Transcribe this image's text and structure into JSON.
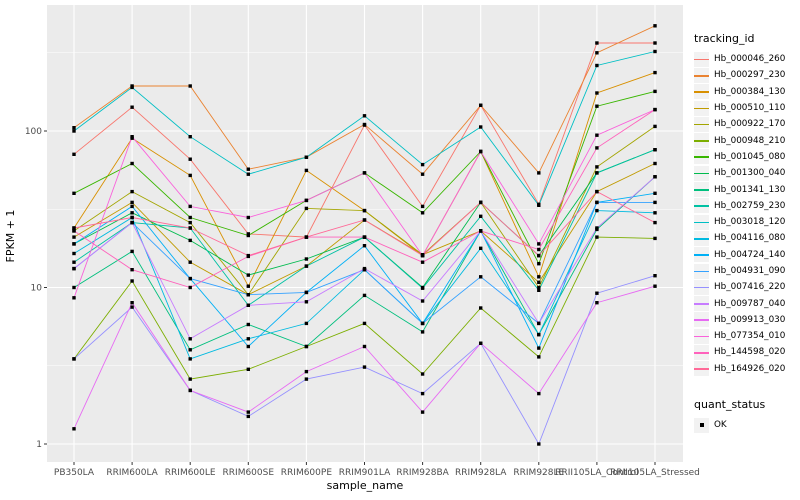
{
  "chart_data": {
    "type": "line",
    "title": "",
    "xlabel": "sample_name",
    "ylabel": "FPKM + 1",
    "y_scale": "log10",
    "ylim": [
      1,
      500
    ],
    "y_ticks": [
      "1",
      "10",
      "100"
    ],
    "grid": "on",
    "panel_bg": "#EBEBEB",
    "grid_color": "#FFFFFF",
    "marker": "black-square",
    "legend_title": "tracking_id",
    "legend_position": "right",
    "categories": [
      "PB350LA",
      "RRIM600LA",
      "RRIM600LE",
      "RRIM600SE",
      "RRIM600PE",
      "RRIM901LA",
      "RRIM928BA",
      "RRIM928LA",
      "RRIM928LE",
      "RRII105LA_Control",
      "RRII105LA_Stressed"
    ],
    "series": [
      {
        "name": "Hb_000046_260",
        "color": "#F8766D",
        "values": [
          71,
          142,
          66,
          22,
          21,
          109,
          33,
          146,
          34,
          365,
          365
        ]
      },
      {
        "name": "Hb_000297_230",
        "color": "#EA8331",
        "values": [
          105,
          194,
          194,
          57,
          68,
          110,
          53,
          146,
          54,
          316,
          470
        ]
      },
      {
        "name": "Hb_000384_130",
        "color": "#D89000",
        "values": [
          24,
          90,
          52,
          10.2,
          56,
          31,
          16,
          74,
          11.7,
          175,
          236
        ]
      },
      {
        "name": "Hb_000510_110",
        "color": "#C09B00",
        "values": [
          21,
          35,
          14.5,
          9,
          13.7,
          27,
          16.2,
          23,
          10.8,
          41,
          62
        ]
      },
      {
        "name": "Hb_000922_170",
        "color": "#A3A500",
        "values": [
          23,
          41,
          26,
          9,
          32,
          31,
          16.2,
          35,
          10,
          59,
          107
        ]
      },
      {
        "name": "Hb_000948_210",
        "color": "#7CAE00",
        "values": [
          3.5,
          11,
          2.6,
          3,
          4.2,
          5.9,
          2.8,
          7.4,
          3.6,
          21,
          20.6
        ]
      },
      {
        "name": "Hb_001045_080",
        "color": "#39B600",
        "values": [
          40,
          62,
          28,
          21.5,
          36,
          54,
          30,
          74,
          14.2,
          144,
          179
        ]
      },
      {
        "name": "Hb_001300_040",
        "color": "#00BB4E",
        "values": [
          19,
          30,
          20,
          12,
          15.2,
          21,
          10,
          35,
          16,
          54,
          76
        ]
      },
      {
        "name": "Hb_001341_130",
        "color": "#00BF7D",
        "values": [
          10,
          17,
          4,
          5.8,
          4.2,
          8.9,
          5.2,
          23,
          5,
          23.5,
          51
        ]
      },
      {
        "name": "Hb_002759_230",
        "color": "#00C1A3",
        "values": [
          14.5,
          26,
          24,
          7.7,
          13.7,
          21,
          9.9,
          28.5,
          9.6,
          54,
          76
        ]
      },
      {
        "name": "Hb_003018_120",
        "color": "#00BFC4",
        "values": [
          100,
          190,
          92,
          53,
          68,
          125,
          61,
          106,
          33.5,
          262,
          322
        ]
      },
      {
        "name": "Hb_004116_080",
        "color": "#00BAE0",
        "values": [
          16.5,
          28,
          3.5,
          4.7,
          5.9,
          13,
          5.9,
          17.8,
          5,
          31,
          30
        ]
      },
      {
        "name": "Hb_004724_140",
        "color": "#00B0F6",
        "values": [
          19,
          33,
          11.4,
          4.2,
          9.3,
          18.5,
          5.9,
          23,
          4.1,
          35,
          40
        ]
      },
      {
        "name": "Hb_004931_090",
        "color": "#35A2FF",
        "values": [
          13.2,
          26,
          11.4,
          9,
          9.3,
          13,
          5.9,
          11.7,
          5.9,
          35,
          35
        ]
      },
      {
        "name": "Hb_007416_220",
        "color": "#9590FF",
        "values": [
          3.5,
          7.5,
          2.2,
          1.5,
          2.6,
          3.1,
          2.1,
          4.4,
          1,
          9.2,
          11.9
        ]
      },
      {
        "name": "Hb_009787_040",
        "color": "#C77CFF",
        "values": [
          13.2,
          26,
          4.7,
          7.7,
          8.1,
          13.2,
          8.2,
          23,
          5.9,
          24,
          51
        ]
      },
      {
        "name": "Hb_009913_030",
        "color": "#E76BF3",
        "values": [
          1.25,
          8,
          2.2,
          1.6,
          2.9,
          4.2,
          1.6,
          4.4,
          2.1,
          8,
          10.2
        ]
      },
      {
        "name": "Hb_077354_010",
        "color": "#FA62DB",
        "values": [
          8.6,
          92,
          33,
          28,
          36,
          54,
          16,
          74,
          19,
          94,
          137
        ]
      },
      {
        "name": "Hb_144598_020",
        "color": "#FF62BC",
        "values": [
          23,
          13,
          10,
          15.8,
          21,
          21,
          14.5,
          23,
          17.5,
          78,
          137
        ]
      },
      {
        "name": "Hb_164926_020",
        "color": "#FF6A98",
        "values": [
          24,
          28,
          24,
          16,
          21,
          27,
          16,
          35,
          16,
          41,
          26
        ]
      }
    ],
    "legend2_title": "quant_status",
    "legend2_items": [
      {
        "label": "OK",
        "marker": "black-square"
      }
    ]
  }
}
